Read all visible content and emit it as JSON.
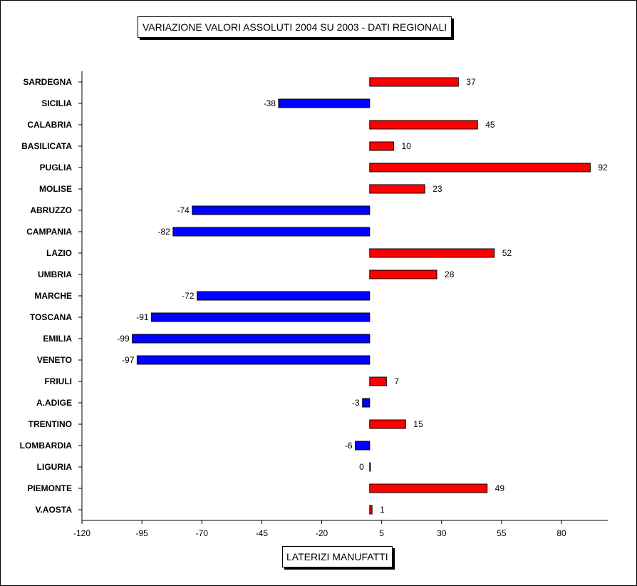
{
  "chart_data": {
    "type": "bar",
    "orientation": "horizontal",
    "title": "VARIAZIONE  VALORI ASSOLUTI 2004 SU 2003 - DATI REGIONALI",
    "xlabel": "LATERIZI MANUFATTI",
    "ylabel": "",
    "xlim": [
      -120,
      100
    ],
    "xticks": [
      -120,
      -95,
      -70,
      -45,
      -20,
      5,
      30,
      55,
      80
    ],
    "grid": false,
    "legend": "none",
    "colors": {
      "positive": "#ff0000",
      "negative": "#0000ff"
    },
    "categories": [
      "SARDEGNA",
      "SICILIA",
      "CALABRIA",
      "BASILICATA",
      "PUGLIA",
      "MOLISE",
      "ABRUZZO",
      "CAMPANIA",
      "LAZIO",
      "UMBRIA",
      "MARCHE",
      "TOSCANA",
      "EMILIA",
      "VENETO",
      "FRIULI",
      "A.ADIGE",
      "TRENTINO",
      "LOMBARDIA",
      "LIGURIA",
      "PIEMONTE",
      "V.AOSTA"
    ],
    "values": [
      37,
      -38,
      45,
      10,
      92,
      23,
      -74,
      -82,
      52,
      28,
      -72,
      -91,
      -99,
      -97,
      7,
      -3,
      15,
      -6,
      0,
      49,
      1
    ]
  }
}
